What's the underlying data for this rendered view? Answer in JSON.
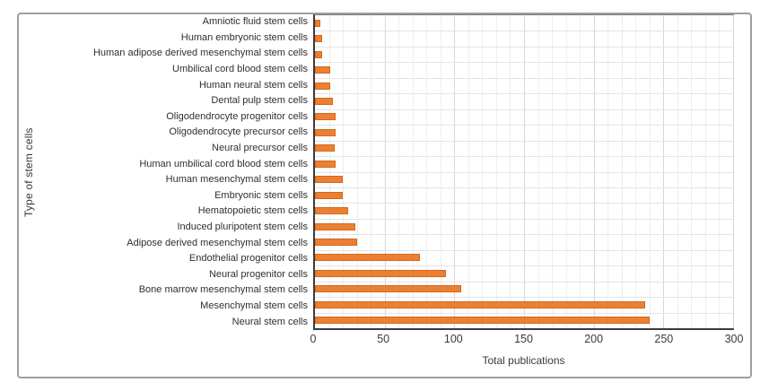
{
  "figure": {
    "background": "#ffffff",
    "frame_border_color": "#9b9fa3"
  },
  "chart_data": {
    "type": "bar",
    "orientation": "horizontal",
    "title": "",
    "xlabel": "Total publications",
    "ylabel": "Type of stem cells",
    "xlim": [
      0,
      300
    ],
    "xticks": [
      0,
      50,
      100,
      150,
      200,
      250,
      300
    ],
    "minor_grid_step": 10,
    "major_grid_step": 50,
    "grid": true,
    "legend": "none",
    "bar_color": "#EC8032",
    "bar_border_color": "#D2691E",
    "categories": [
      "Amniotic fluid stem cells",
      "Human embryonic stem cells",
      "Human adipose derived mesenchymal stem cells",
      "Umbilical cord blood stem cells",
      "Human neural stem cells",
      "Dental pulp stem cells",
      "Oligodendrocyte progenitor cells",
      "Oligodendrocyte precursor cells",
      "Neural precursor cells",
      "Human umbilical cord blood stem cells",
      "Human mesenchymal stem cells",
      "Embryonic stem cells",
      "Hematopoietic stem cells",
      "Induced pluripotent stem cells",
      "Adipose derived mesenchymal stem cells",
      "Endothelial progenitor cells",
      "Neural progenitor cells",
      "Bone marrow mesenchymal stem cells",
      "Mesenchymal stem cells",
      "Neural stem cells"
    ],
    "values": [
      4,
      5,
      5,
      11,
      11,
      13,
      15,
      15,
      14,
      15,
      20,
      20,
      24,
      29,
      30,
      75,
      94,
      105,
      237,
      240
    ]
  }
}
